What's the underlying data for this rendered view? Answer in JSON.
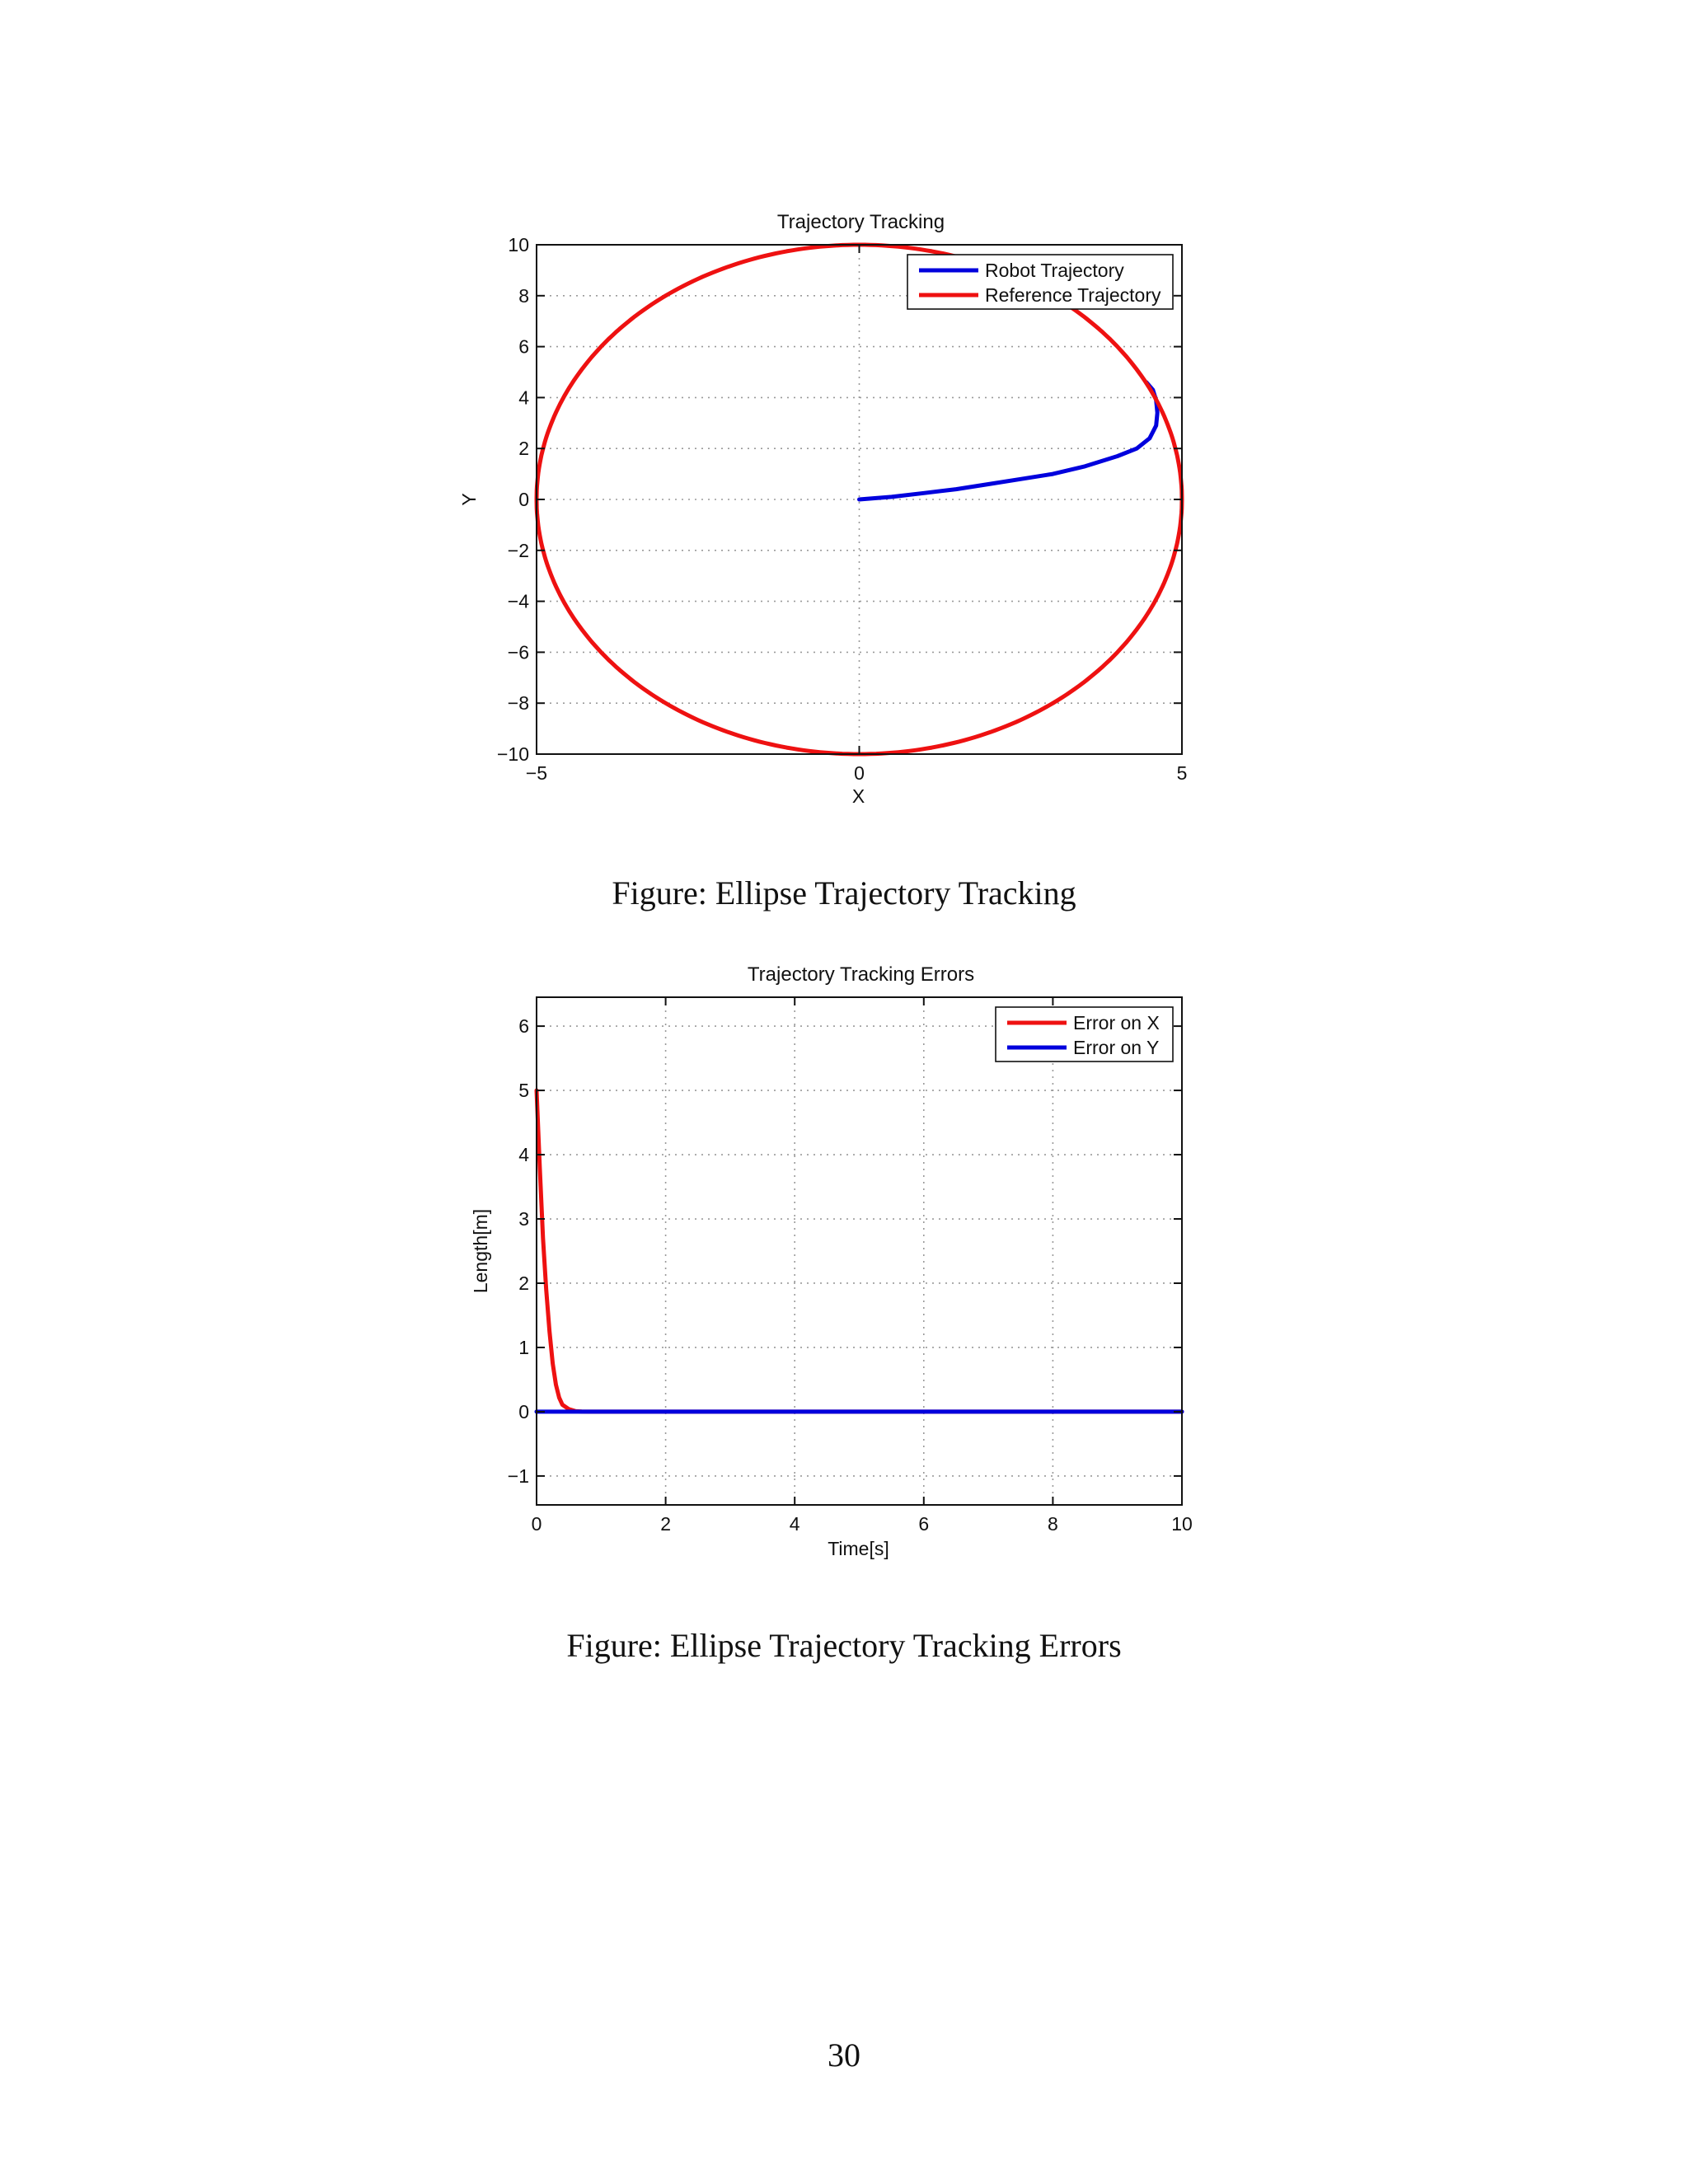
{
  "charts": [
    {
      "title": "Trajectory Tracking",
      "xlabel": "X",
      "ylabel": "Y",
      "caption": "Figure: Ellipse Trajectory Tracking"
    },
    {
      "title": "Trajectory Tracking Errors",
      "xlabel": "Time[s]",
      "ylabel": "Length[m]",
      "caption": "Figure: Ellipse Trajectory Tracking Errors"
    }
  ],
  "page_number": "30",
  "chart_data": [
    {
      "type": "line",
      "title": "Trajectory Tracking",
      "xlabel": "X",
      "ylabel": "Y",
      "xlim": [
        -5,
        5
      ],
      "ylim": [
        -10,
        10
      ],
      "xticks": [
        "−5",
        "0",
        "5"
      ],
      "xtick_values": [
        -5,
        0,
        5
      ],
      "yticks": [
        "−10",
        "−8",
        "−6",
        "−4",
        "−2",
        "0",
        "2",
        "4",
        "6",
        "8",
        "10"
      ],
      "ytick_values": [
        -10,
        -8,
        -6,
        -4,
        -2,
        0,
        2,
        4,
        6,
        8,
        10
      ],
      "grid": true,
      "legend_position": "top-right",
      "series": [
        {
          "name": "Robot Trajectory",
          "color": "#0000dd",
          "x": [
            0,
            0.5,
            1.0,
            1.5,
            2.0,
            2.5,
            3.0,
            3.5,
            4.0,
            4.3,
            4.5,
            4.6,
            4.62,
            4.6,
            4.55,
            4.45
          ],
          "y": [
            0,
            0.1,
            0.25,
            0.4,
            0.6,
            0.8,
            1.0,
            1.3,
            1.7,
            2.0,
            2.4,
            2.9,
            3.4,
            3.9,
            4.3,
            4.6
          ]
        },
        {
          "name": "Reference Trajectory",
          "color": "#ee1111",
          "shape": "ellipse",
          "center": [
            0,
            0
          ],
          "semi_axes": [
            5,
            10
          ]
        }
      ]
    },
    {
      "type": "line",
      "title": "Trajectory Tracking Errors",
      "xlabel": "Time[s]",
      "ylabel": "Length[m]",
      "xlim": [
        0,
        10
      ],
      "ylim": [
        -1.45,
        6.45
      ],
      "xticks": [
        "0",
        "2",
        "4",
        "6",
        "8",
        "10"
      ],
      "xtick_values": [
        0,
        2,
        4,
        6,
        8,
        10
      ],
      "yticks": [
        "−1",
        "0",
        "1",
        "2",
        "3",
        "4",
        "5",
        "6"
      ],
      "ytick_values": [
        -1,
        0,
        1,
        2,
        3,
        4,
        5,
        6
      ],
      "grid": true,
      "legend_position": "top-right",
      "series": [
        {
          "name": "Error on X",
          "color": "#ee1111",
          "x": [
            0,
            0.05,
            0.1,
            0.15,
            0.2,
            0.25,
            0.3,
            0.35,
            0.4,
            0.5,
            0.6,
            0.7,
            0.8,
            1.0,
            2.0,
            4.0,
            6.0,
            8.0,
            10.0
          ],
          "y": [
            5.0,
            3.8,
            2.7,
            1.9,
            1.25,
            0.75,
            0.42,
            0.22,
            0.11,
            0.04,
            0.01,
            0.003,
            0.001,
            0,
            0,
            0,
            0,
            0,
            0
          ]
        },
        {
          "name": "Error on Y",
          "color": "#0000dd",
          "x": [
            0,
            2,
            4,
            6,
            8,
            10
          ],
          "y": [
            0,
            0,
            0,
            0,
            0,
            0
          ]
        }
      ]
    }
  ]
}
